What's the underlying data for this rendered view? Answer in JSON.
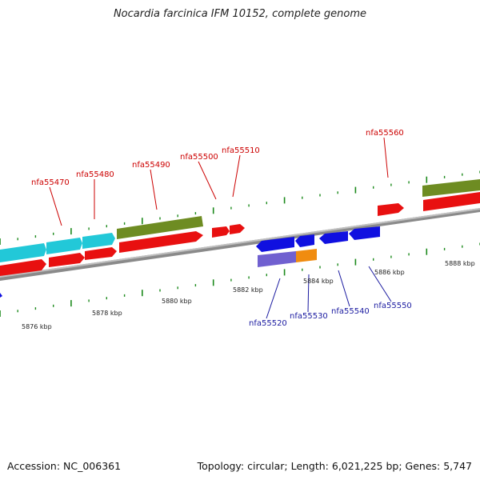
{
  "title": "Nocardia farcinica IFM 10152, complete genome",
  "footer": {
    "accession": "Accession: NC_006361",
    "topology": "Topology: circular; Length: 6,021,225 bp; Genes: 5,747"
  },
  "colors": {
    "forward_gene": "#e81010",
    "reverse_gene": "#1010e0",
    "cyan_gene": "#22c8d8",
    "olive_gene": "#6e8c22",
    "violet_gene": "#7060d0",
    "orange_gene": "#f08c10",
    "backbone": "#8a8a8a",
    "tick": "#1c8a1c",
    "label_top": "#cc0000",
    "label_bottom": "#1a1aa0"
  },
  "scale_labels": [
    "5876 kbp",
    "5878 kbp",
    "5880 kbp",
    "5882 kbp",
    "5884 kbp",
    "5886 kbp",
    "5888 kbp"
  ],
  "gene_labels_forward": [
    "nfa55470",
    "nfa55480",
    "nfa55490",
    "nfa55500",
    "nfa55510",
    "nfa55560"
  ],
  "gene_labels_reverse": [
    "nfa55520",
    "nfa55530",
    "nfa55540",
    "nfa55550"
  ]
}
